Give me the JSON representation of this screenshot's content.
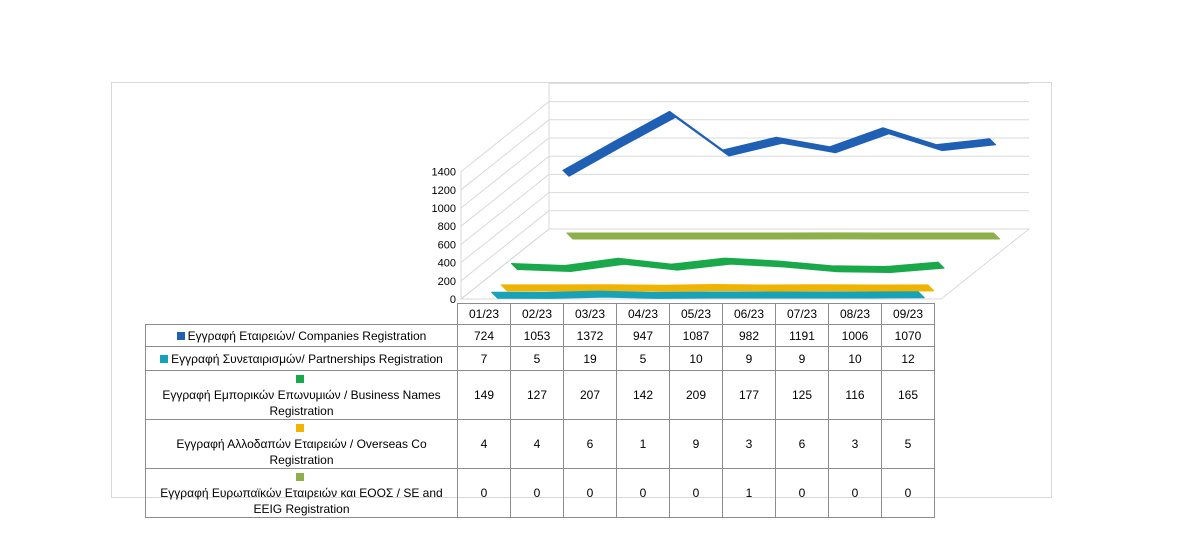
{
  "chart_data": {
    "type": "line",
    "categories": [
      "01/23",
      "02/23",
      "03/23",
      "04/23",
      "05/23",
      "06/23",
      "07/23",
      "08/23",
      "09/23"
    ],
    "yticks": [
      "0",
      "200",
      "400",
      "600",
      "800",
      "1000",
      "1200",
      "1400"
    ],
    "ylim": [
      0,
      1400
    ],
    "grid": true,
    "legend": "table-below",
    "series": [
      {
        "name": "Εγγραφή  Εταιρειών/ Companies Registration",
        "color": "#1f5fb4",
        "values": [
          724,
          1053,
          1372,
          947,
          1087,
          982,
          1191,
          1006,
          1070
        ]
      },
      {
        "name": "Εγγραφή  Συνεταιρισμών/ Partnerships Registration",
        "color": "#17a2b8",
        "values": [
          7,
          5,
          19,
          5,
          10,
          9,
          9,
          10,
          12
        ]
      },
      {
        "name": "Εγγραφή  Εμπορικών Επωνυμιών / Business Names Registration",
        "color": "#19a84a",
        "values": [
          149,
          127,
          207,
          142,
          209,
          177,
          125,
          116,
          165
        ]
      },
      {
        "name": "Εγγραφή  Αλλοδαπών  Εταιρειών / Overseas Co Registration",
        "color": "#f0b400",
        "values": [
          4,
          4,
          6,
          1,
          9,
          3,
          6,
          3,
          5
        ]
      },
      {
        "name": "Εγγραφή  Ευρωπαϊκών Εταιρειών και ΕΟΟΣ / SE and EEIG Registration",
        "color": "#8db04a",
        "values": [
          0,
          0,
          0,
          0,
          0,
          1,
          0,
          0,
          0
        ]
      }
    ]
  }
}
